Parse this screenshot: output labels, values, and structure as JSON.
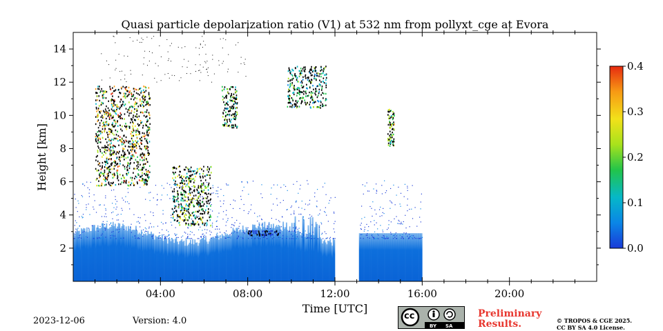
{
  "chart_data": {
    "type": "heatmap",
    "title": "Quasi particle depolarization ratio (V1) at 532 nm from pollyxt_cge at Evora",
    "xlabel": "Time [UTC]",
    "ylabel": "Height [km]",
    "xlim_hours": [
      0,
      24
    ],
    "ylim_km": [
      0,
      15
    ],
    "x_ticks": [
      {
        "value": 4,
        "label": "04:00"
      },
      {
        "value": 8,
        "label": "08:00"
      },
      {
        "value": 12,
        "label": "12:00"
      },
      {
        "value": 16,
        "label": "16:00"
      },
      {
        "value": 20,
        "label": "20:00"
      }
    ],
    "y_ticks": [
      {
        "value": 2,
        "label": "2"
      },
      {
        "value": 4,
        "label": "4"
      },
      {
        "value": 6,
        "label": "6"
      },
      {
        "value": 8,
        "label": "8"
      },
      {
        "value": 10,
        "label": "10"
      },
      {
        "value": 12,
        "label": "12"
      },
      {
        "value": 14,
        "label": "14"
      }
    ],
    "colorbar": {
      "range": [
        0.0,
        0.4
      ],
      "ticks": [
        {
          "value": 0.0,
          "label": "0.0"
        },
        {
          "value": 0.1,
          "label": "0.1"
        },
        {
          "value": 0.2,
          "label": "0.2"
        },
        {
          "value": 0.3,
          "label": "0.3"
        },
        {
          "value": 0.4,
          "label": "0.4"
        }
      ],
      "colormap": [
        "#1a3bd8",
        "#0a86e6",
        "#06b8c8",
        "#22c44a",
        "#a8e21c",
        "#f2e11a",
        "#f79a14",
        "#e62b10"
      ]
    },
    "data_gap_hours": [
      [
        12.0,
        13.1
      ],
      [
        16.0,
        24.0
      ]
    ],
    "regions": [
      {
        "name": "boundary-layer",
        "t_start": 0.0,
        "t_end": 16.0,
        "h_top_km": 3.0,
        "value": 0.03
      },
      {
        "name": "cirrus-early",
        "t_start": 1.0,
        "t_end": 3.5,
        "h_bottom_km": 5.8,
        "h_top_km": 11.8,
        "value": 0.25
      },
      {
        "name": "cirrus-mid",
        "t_start": 4.5,
        "t_end": 6.3,
        "h_bottom_km": 3.4,
        "h_top_km": 7.0,
        "value": 0.2
      },
      {
        "name": "cirrus-upper",
        "t_start": 6.8,
        "t_end": 7.5,
        "h_bottom_km": 9.3,
        "h_top_km": 11.8,
        "value": 0.18
      },
      {
        "name": "cirrus-high",
        "t_start": 9.8,
        "t_end": 11.6,
        "h_bottom_km": 10.5,
        "h_top_km": 13.0,
        "value": 0.15
      },
      {
        "name": "aerosol-top",
        "t_start": 8.0,
        "t_end": 9.5,
        "h_bottom_km": 2.8,
        "h_top_km": 3.1,
        "value": 0.02
      },
      {
        "name": "afternoon-cloud",
        "t_start": 14.4,
        "t_end": 14.7,
        "h_bottom_km": 8.2,
        "h_top_km": 10.4,
        "value": 0.22
      }
    ]
  },
  "footer": {
    "date": "2023-12-06",
    "version": "Version: 4.0",
    "preliminary_line1": "Preliminary",
    "preliminary_line2": "Results.",
    "copyright_line1": "© TROPOS & CGE 2025.",
    "copyright_line2": "CC BY SA 4.0 License.",
    "cc_label": "cc",
    "by_label": "BY",
    "sa_label": "SA"
  },
  "colors": {
    "low": "#0a6fdc",
    "cloud_black": "#000000",
    "prelim_red": "#e8372f"
  }
}
